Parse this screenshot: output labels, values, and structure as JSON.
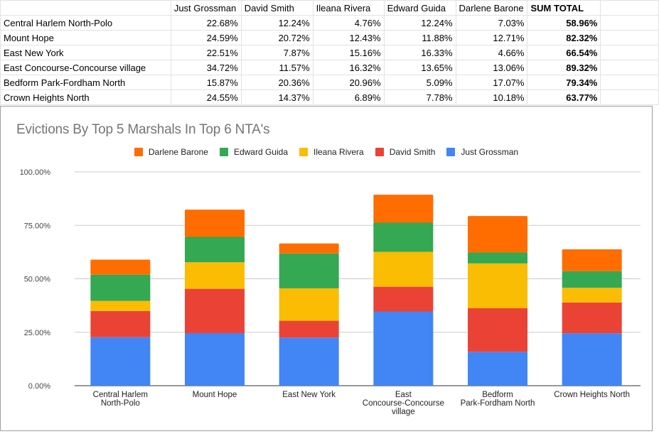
{
  "table": {
    "headers": [
      "",
      "Just Grossman",
      "David Smith",
      "Ileana Rivera",
      "Edward Guida",
      "Darlene Barone",
      "SUM TOTAL"
    ],
    "rows": [
      [
        "Central Harlem North-Polo",
        "22.68%",
        "12.24%",
        "4.76%",
        "12.24%",
        "7.03%",
        "58.96%"
      ],
      [
        "Mount Hope",
        "24.59%",
        "20.72%",
        "12.43%",
        "11.88%",
        "12.71%",
        "82.32%"
      ],
      [
        "East New York",
        "22.51%",
        "7.87%",
        "15.16%",
        "16.33%",
        "4.66%",
        "66.54%"
      ],
      [
        "East Concourse-Concourse village",
        "34.72%",
        "11.57%",
        "16.32%",
        "13.65%",
        "13.06%",
        "89.32%"
      ],
      [
        "Bedform Park-Fordham North",
        "15.87%",
        "20.36%",
        "20.96%",
        "5.09%",
        "17.07%",
        "79.34%"
      ],
      [
        "Crown Heights North",
        "24.55%",
        "14.37%",
        "6.89%",
        "7.78%",
        "10.18%",
        "63.77%"
      ]
    ]
  },
  "chart_data": {
    "type": "bar",
    "stacked": true,
    "title": "Evictions By Top 5 Marshals In Top 6 NTA's",
    "xlabel": "",
    "ylabel": "",
    "ylim": [
      0,
      100
    ],
    "y_ticks": [
      "0.00%",
      "25.00%",
      "50.00%",
      "75.00%",
      "100.00%"
    ],
    "y_tick_values": [
      0,
      25,
      50,
      75,
      100
    ],
    "grid": true,
    "legend_position": "top",
    "categories": [
      [
        "Central Harlem",
        "North-Polo"
      ],
      [
        "Mount Hope"
      ],
      [
        "East New York"
      ],
      [
        "East",
        "Concourse-Concourse",
        "village"
      ],
      [
        "Bedform",
        "Park-Fordham North"
      ],
      [
        "Crown Heights North"
      ]
    ],
    "legend_order": [
      "Darlene Barone",
      "Edward Guida",
      "Ileana Rivera",
      "David Smith",
      "Just Grossman"
    ],
    "series": [
      {
        "name": "Just Grossman",
        "color": "#4285f4",
        "values": [
          22.68,
          24.59,
          22.51,
          34.72,
          15.87,
          24.55
        ]
      },
      {
        "name": "David Smith",
        "color": "#ea4335",
        "values": [
          12.24,
          20.72,
          7.87,
          11.57,
          20.36,
          14.37
        ]
      },
      {
        "name": "Ileana Rivera",
        "color": "#fbbc04",
        "values": [
          4.76,
          12.43,
          15.16,
          16.32,
          20.96,
          6.89
        ]
      },
      {
        "name": "Edward Guida",
        "color": "#34a853",
        "values": [
          12.24,
          11.88,
          16.33,
          13.65,
          5.09,
          7.78
        ]
      },
      {
        "name": "Darlene Barone",
        "color": "#ff6d01",
        "values": [
          7.03,
          12.71,
          4.66,
          13.06,
          17.07,
          10.18
        ]
      }
    ]
  }
}
